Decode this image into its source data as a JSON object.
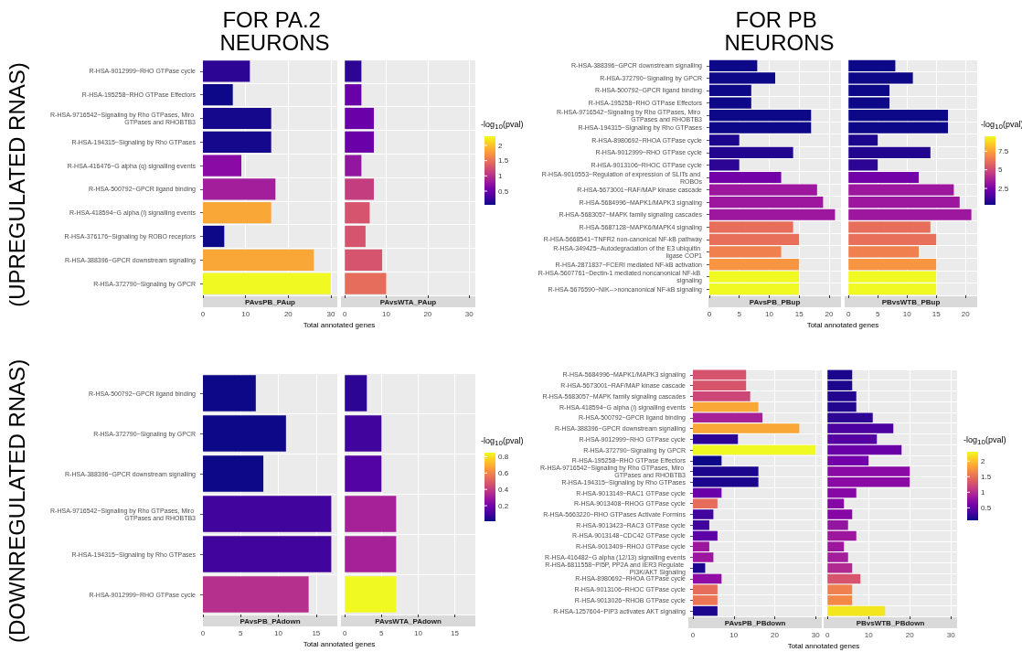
{
  "chart_data": [
    {
      "type": "bar",
      "orientation": "horizontal",
      "title": "FOR PA.2 NEURONS",
      "annotations": [
        "(UPREGULATED RNAS)"
      ],
      "xlabel": "Total annotated genes",
      "xlim": [
        0,
        31.5
      ],
      "xticks": [
        0,
        10,
        20,
        30
      ],
      "grid": true,
      "categories": [
        "R-HSA-9012999~RHO GTPase cycle",
        "R-HSA-195258~RHO GTPase Effectors",
        "R-HSA-9716542~Signaling by Rho GTPases, Miro GTPases and RHOBTB3",
        "R-HSA-194315~Signaling by Rho GTPases",
        "R-HSA-416476~G alpha (q) signalling events",
        "R-HSA-500792~GPCR ligand binding",
        "R-HSA-418594~G alpha (i) signalling events",
        "R-HSA-376176~Signaling by ROBO receptors",
        "R-HSA-388396~GPCR downstream signalling",
        "R-HSA-372790~Signaling by GPCR"
      ],
      "series": [
        {
          "name": "PAvsPB_PAup",
          "values": [
            11,
            7,
            16,
            16,
            9,
            17,
            16,
            5,
            26,
            30
          ],
          "colors": [
            "#2c0594",
            "#0d0887",
            "#15088c",
            "#15088c",
            "#8a0aa5",
            "#a31e9a",
            "#f9a737",
            "#0d0887",
            "#f9a737",
            "#f0f921"
          ]
        }
      ]
    },
    {
      "type": "bar",
      "orientation": "horizontal",
      "tick_labels": "x",
      "clabel": "-log$_{10}$(pval)",
      "clim": [
        0.05,
        2.3
      ],
      "cticks": [
        0.5,
        1.0,
        1.5,
        2.0
      ],
      "xlim": [
        0,
        31.5
      ],
      "xticks": [
        0,
        10,
        20,
        30
      ],
      "grid": true,
      "categories": [
        "R-HSA-9012999~RHO GTPase cycle",
        "R-HSA-195258~RHO GTPase Effectors",
        "R-HSA-9716542~Signaling by Rho GTPases, Miro GTPases and RHOBTB3",
        "R-HSA-194315~Signaling by Rho GTPases",
        "R-HSA-416476~G alpha (q) signalling events",
        "R-HSA-500792~GPCR ligand binding",
        "R-HSA-418594~G alpha (i) signalling events",
        "R-HSA-376176~Signaling by ROBO receptors",
        "R-HSA-388396~GPCR downstream signalling",
        "R-HSA-372790~Signaling by GPCR"
      ],
      "series": [
        {
          "name": "PAvsWTA_PAup",
          "values": [
            4,
            4,
            7,
            7,
            4,
            7,
            6,
            5,
            9,
            10
          ],
          "colors": [
            "#2c0594",
            "#6a00a8",
            "#6a00a8",
            "#6a00a8",
            "#9316a0",
            "#c43e7f",
            "#d6546e",
            "#d6546e",
            "#d6546e",
            "#e66c5c"
          ]
        }
      ]
    },
    {
      "type": "bar",
      "orientation": "horizontal",
      "title": "FOR PB NEURONS",
      "xlabel": "Total annotated genes",
      "xlim": [
        0,
        22
      ],
      "xticks": [
        0,
        5,
        10,
        15,
        20
      ],
      "grid": true,
      "categories": [
        "R-HSA-388396~GPCR downstream signalling",
        "R-HSA-372790~Signaling by GPCR",
        "R-HSA-500792~GPCR ligand binding",
        "R-HSA-195258~RHO GTPase Effectors",
        "R-HSA-9716542~Signaling by Rho GTPases, Miro GTPases and RHOBTB3",
        "R-HSA-194315~Signaling by Rho GTPases",
        "R-HSA-8980692~RHOA GTPase cycle",
        "R-HSA-9012999~RHO GTPase cycle",
        "R-HSA-9013106~RHOC GTPase cycle",
        "R-HSA-9010553~Regulation of expression of SLITs and ROBOs",
        "R-HSA-5673001~RAF/MAP kinase cascade",
        "R-HSA-5684996~MAPK1/MAPK3 signaling",
        "R-HSA-5683057~MAPK family signaling cascades",
        "R-HSA-5687128~MAPK6/MAPK4 signaling",
        "R-HSA-5668541~TNFR2 non-canonical NF-kB pathway",
        "R-HSA-349425~Autodegradation of the E3 ubiquitin ligase COP1",
        "R-HSA-2871837~FCERI mediated NF-kB activation",
        "R-HSA-5607761~Dectin-1 mediated noncanonical NF-kB signaling",
        "R-HSA-5676590~NIK-->noncanonical NF-kB signaling"
      ],
      "series": [
        {
          "name": "PAvsPB_PBup",
          "values": [
            8,
            11,
            7,
            7,
            17,
            17,
            5,
            14,
            5,
            12,
            18,
            19,
            21,
            14,
            15,
            12,
            15,
            15,
            15
          ],
          "colors": [
            "#0d0887",
            "#0d0887",
            "#0d0887",
            "#0d0887",
            "#0d0887",
            "#0d0887",
            "#1b068d",
            "#22068f",
            "#2c0594",
            "#7201a8",
            "#9c179e",
            "#9c179e",
            "#9c179e",
            "#e76e5b",
            "#e8705a",
            "#f0804e",
            "#f89540",
            "#f0f921",
            "#f0f921"
          ]
        }
      ]
    },
    {
      "type": "bar",
      "orientation": "horizontal",
      "tick_labels": "x",
      "clabel": "-log$_{10}$(pval)",
      "clim": [
        0.3,
        9.5
      ],
      "cticks": [
        2.5,
        5.0,
        7.5
      ],
      "xlim": [
        0,
        22
      ],
      "xticks": [
        0,
        5,
        10,
        15,
        20
      ],
      "grid": true,
      "categories": [
        "R-HSA-388396~GPCR downstream signalling",
        "R-HSA-372790~Signaling by GPCR",
        "R-HSA-500792~GPCR ligand binding",
        "R-HSA-195258~RHO GTPase Effectors",
        "R-HSA-9716542~Signaling by Rho GTPases, Miro GTPases and RHOBTB3",
        "R-HSA-194315~Signaling by Rho GTPases",
        "R-HSA-8980692~RHOA GTPase cycle",
        "R-HSA-9012999~RHO GTPase cycle",
        "R-HSA-9013106~RHOC GTPase cycle",
        "R-HSA-9010553~Regulation of expression of SLITs and ROBOs",
        "R-HSA-5673001~RAF/MAP kinase cascade",
        "R-HSA-5684996~MAPK1/MAPK3 signaling",
        "R-HSA-5683057~MAPK family signaling cascades",
        "R-HSA-5687128~MAPK6/MAPK4 signaling",
        "R-HSA-5668541~TNFR2 non-canonical NF-kB pathway",
        "R-HSA-349425~Autodegradation of the E3 ubiquitin ligase COP1",
        "R-HSA-2871837~FCERI mediated NF-kB activation",
        "R-HSA-5607761~Dectin-1 mediated noncanonical NF-kB signaling",
        "R-HSA-5676590~NIK-->noncanonical NF-kB signaling"
      ],
      "series": [
        {
          "name": "PBvsWTB_PBup",
          "values": [
            8,
            11,
            7,
            7,
            17,
            17,
            5,
            14,
            5,
            12,
            18,
            19,
            21,
            14,
            15,
            12,
            15,
            15,
            15
          ],
          "colors": [
            "#0d0887",
            "#0d0887",
            "#0d0887",
            "#0d0887",
            "#0d0887",
            "#0d0887",
            "#1b068d",
            "#22068f",
            "#2c0594",
            "#7201a8",
            "#9c179e",
            "#9c179e",
            "#9c179e",
            "#e76e5b",
            "#e8705a",
            "#f0804e",
            "#f89540",
            "#f0f921",
            "#f0f921"
          ]
        }
      ]
    },
    {
      "type": "bar",
      "orientation": "horizontal",
      "annotations": [
        "(DOWNREGULATED RNAS)"
      ],
      "xlabel": "Total annotated genes",
      "xlim": [
        0,
        17.8
      ],
      "xticks": [
        0,
        5,
        10,
        15
      ],
      "grid": true,
      "categories": [
        "R-HSA-500792~GPCR ligand binding",
        "R-HSA-372790~Signaling by GPCR",
        "R-HSA-388396~GPCR downstream signalling",
        "R-HSA-9716542~Signaling by Rho GTPases, Miro GTPases and RHOBTB3",
        "R-HSA-194315~Signaling by Rho GTPases",
        "R-HSA-9012999~RHO GTPase cycle"
      ],
      "series": [
        {
          "name": "PAvsPB_PAdown",
          "values": [
            7,
            11,
            8,
            17,
            17,
            14
          ],
          "colors": [
            "#0d0887",
            "#0d0887",
            "#0d0887",
            "#41049d",
            "#41049d",
            "#b52f8c"
          ]
        }
      ]
    },
    {
      "type": "bar",
      "orientation": "horizontal",
      "tick_labels": "x",
      "clabel": "-log$_{10}$(pval)",
      "clim": [
        0.01,
        0.85
      ],
      "cticks": [
        0.2,
        0.4,
        0.6,
        0.8
      ],
      "xlim": [
        0,
        17.8
      ],
      "xticks": [
        0,
        5,
        10,
        15
      ],
      "grid": true,
      "categories": [
        "R-HSA-500792~GPCR ligand binding",
        "R-HSA-372790~Signaling by GPCR",
        "R-HSA-388396~GPCR downstream signalling",
        "R-HSA-9716542~Signaling by Rho GTPases, Miro GTPases and RHOBTB3",
        "R-HSA-194315~Signaling by Rho GTPases",
        "R-HSA-9012999~RHO GTPase cycle"
      ],
      "series": [
        {
          "name": "PAvsWTA_PAdown",
          "values": [
            3,
            5,
            5,
            7,
            7,
            7
          ],
          "colors": [
            "#2c0594",
            "#41049d",
            "#5302a3",
            "#a62098",
            "#a62098",
            "#f0f921"
          ]
        }
      ]
    },
    {
      "type": "bar",
      "orientation": "horizontal",
      "xlabel": "Total annotated genes",
      "xlim": [
        0,
        31.5
      ],
      "xticks": [
        0,
        10,
        20,
        30
      ],
      "grid": true,
      "categories": [
        "R-HSA-5684996~MAPK1/MAPK3 signaling",
        "R-HSA-5673001~RAF/MAP kinase cascade",
        "R-HSA-5683057~MAPK family signaling cascades",
        "R-HSA-418594~G alpha (i) signalling events",
        "R-HSA-500792~GPCR ligand binding",
        "R-HSA-388396~GPCR downstream signalling",
        "R-HSA-9012999~RHO GTPase cycle",
        "R-HSA-372790~Signaling by GPCR",
        "R-HSA-195258~RHO GTPase Effectors",
        "R-HSA-9716542~Signaling by Rho GTPases, Miro GTPases and RHOBTB3",
        "R-HSA-194315~Signaling by Rho GTPases",
        "R-HSA-9013149~RAC1 GTPase cycle",
        "R-HSA-9013408~RHOG GTPase cycle",
        "R-HSA-5663220~RHO GTPases Activate Formins",
        "R-HSA-9013423~RAC3 GTPase cycle",
        "R-HSA-9013148~CDC42 GTPase cycle",
        "R-HSA-9013409~RHOJ GTPase cycle",
        "R-HSA-416482~G alpha (12/13) signalling events",
        "R-HSA-6811558~PI5P, PP2A and IER3 Regulate PI3K/AKT Signaling",
        "R-HSA-8980692~RHOA GTPase cycle",
        "R-HSA-9013106~RHOC GTPase cycle",
        "R-HSA-9013026~RHOB GTPase cycle",
        "R-HSA-1257604~PIP3 activates AKT signaling"
      ],
      "series": [
        {
          "name": "PAvsPB_PBdown",
          "values": [
            13,
            13,
            14,
            16,
            17,
            26,
            11,
            30,
            7,
            16,
            16,
            7,
            6,
            5,
            4,
            6,
            4,
            5,
            3,
            7,
            6,
            6,
            6
          ],
          "colors": [
            "#d5536f",
            "#d6556d",
            "#cc4778",
            "#f9a737",
            "#a62098",
            "#f9a737",
            "#2c0594",
            "#f0f921",
            "#0d0887",
            "#1b068d",
            "#1b068d",
            "#6a00a8",
            "#e66c5c",
            "#41049d",
            "#41049d",
            "#5c01a6",
            "#9c179e",
            "#9c179e",
            "#1b068d",
            "#8f0da4",
            "#e66c5c",
            "#eb7655",
            "#1b068d"
          ]
        }
      ]
    },
    {
      "type": "bar",
      "orientation": "horizontal",
      "tick_labels": "x",
      "clabel": "-log$_{10}$(pval)",
      "clim": [
        0.1,
        2.3
      ],
      "cticks": [
        0.5,
        1.0,
        1.5,
        2.0
      ],
      "xlim": [
        0,
        31.5
      ],
      "xticks": [
        0,
        10,
        20,
        30
      ],
      "grid": true,
      "categories": [
        "R-HSA-5684996~MAPK1/MAPK3 signaling",
        "R-HSA-5673001~RAF/MAP kinase cascade",
        "R-HSA-5683057~MAPK family signaling cascades",
        "R-HSA-418594~G alpha (i) signalling events",
        "R-HSA-500792~GPCR ligand binding",
        "R-HSA-388396~GPCR downstream signalling",
        "R-HSA-9012999~RHO GTPase cycle",
        "R-HSA-372790~Signaling by GPCR",
        "R-HSA-195258~RHO GTPase Effectors",
        "R-HSA-9716542~Signaling by Rho GTPases, Miro GTPases and RHOBTB3",
        "R-HSA-194315~Signaling by Rho GTPases",
        "R-HSA-9013149~RAC1 GTPase cycle",
        "R-HSA-9013408~RHOG GTPase cycle",
        "R-HSA-5663220~RHO GTPases Activate Formins",
        "R-HSA-9013423~RAC3 GTPase cycle",
        "R-HSA-9013148~CDC42 GTPase cycle",
        "R-HSA-9013409~RHOJ GTPase cycle",
        "R-HSA-416482~G alpha (12/13) signalling events",
        "R-HSA-6811558~PI5P, PP2A and IER3 Regulate PI3K/AKT Signaling",
        "R-HSA-8980692~RHOA GTPase cycle",
        "R-HSA-9013106~RHOC GTPase cycle",
        "R-HSA-9013026~RHOB GTPase cycle",
        "R-HSA-1257604~PIP3 activates AKT signaling"
      ],
      "series": [
        {
          "name": "PBvsWTB_PBdown",
          "values": [
            6,
            6,
            7,
            7,
            11,
            16,
            12,
            18,
            10,
            20,
            20,
            7,
            4,
            6,
            5,
            7,
            4,
            5,
            6,
            8,
            6,
            6,
            14
          ],
          "colors": [
            "#1b068d",
            "#1b068d",
            "#22068f",
            "#22068f",
            "#2c0594",
            "#4c02a1",
            "#5402a3",
            "#6a00a8",
            "#7201a8",
            "#8a0aa5",
            "#8a0aa5",
            "#8606a6",
            "#8606a6",
            "#8606a6",
            "#9316a0",
            "#9c179e",
            "#9c179e",
            "#a31e9a",
            "#b02a8f",
            "#d6546e",
            "#f0804e",
            "#f48849",
            "#f4e61e"
          ]
        }
      ]
    }
  ]
}
